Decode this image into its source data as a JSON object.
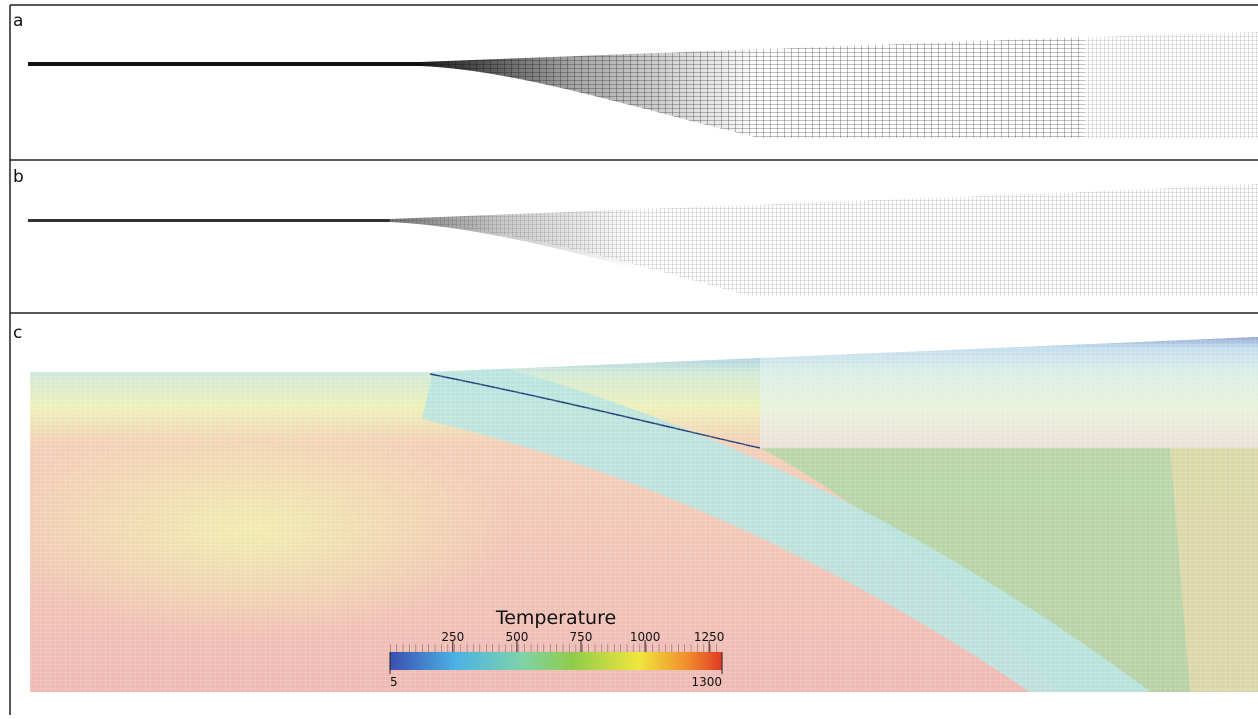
{
  "panels": [
    {
      "label": "a"
    },
    {
      "label": "b"
    },
    {
      "label": "c"
    }
  ],
  "colorbar": {
    "title": "Temperature",
    "min": 5,
    "max": 1300,
    "ticks": [
      250,
      500,
      750,
      1000,
      1250
    ]
  }
}
